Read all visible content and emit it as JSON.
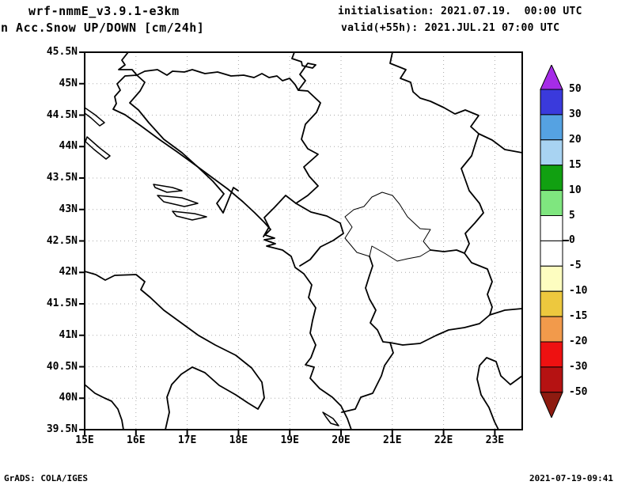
{
  "header": {
    "model": "wrf-nmmE_v3.9.1-e3km",
    "product": "n Acc.Snow UP/DOWN [cm/24h]",
    "init_label": "initialisation: 2021.07.19.  00:00 UTC",
    "valid_label": "valid(+55h): 2021.JUL.21 07:00 UTC"
  },
  "map": {
    "lat_ticks": [
      "45.5N",
      "45N",
      "44.5N",
      "44N",
      "43.5N",
      "43N",
      "42.5N",
      "42N",
      "41.5N",
      "41N",
      "40.5N",
      "40N",
      "39.5N"
    ],
    "lon_ticks": [
      "15E",
      "16E",
      "17E",
      "18E",
      "19E",
      "20E",
      "21E",
      "22E",
      "23E"
    ],
    "line_color": "#000000",
    "grid_color": "#aaaaaa",
    "background": "#ffffff"
  },
  "colorbar": {
    "boundary_labels": [
      "50",
      "30",
      "20",
      "15",
      "10",
      "5",
      "0",
      "-5",
      "-10",
      "-15",
      "-20",
      "-30",
      "-50"
    ],
    "above_color": "#a52ce8",
    "band_colors": [
      "#3a3adc",
      "#55a2e2",
      "#a8d3f2",
      "#11a011",
      "#7fe67f",
      "#ffffff",
      "#ffffff",
      "#fdfdc0",
      "#edc83e",
      "#f29a4b",
      "#ee1111",
      "#b51212"
    ],
    "below_color": "#8e1b10",
    "zero_label": "0"
  },
  "footer": {
    "left": "GrADS: COLA/IGES",
    "right": "2021-07-19-09:41"
  }
}
